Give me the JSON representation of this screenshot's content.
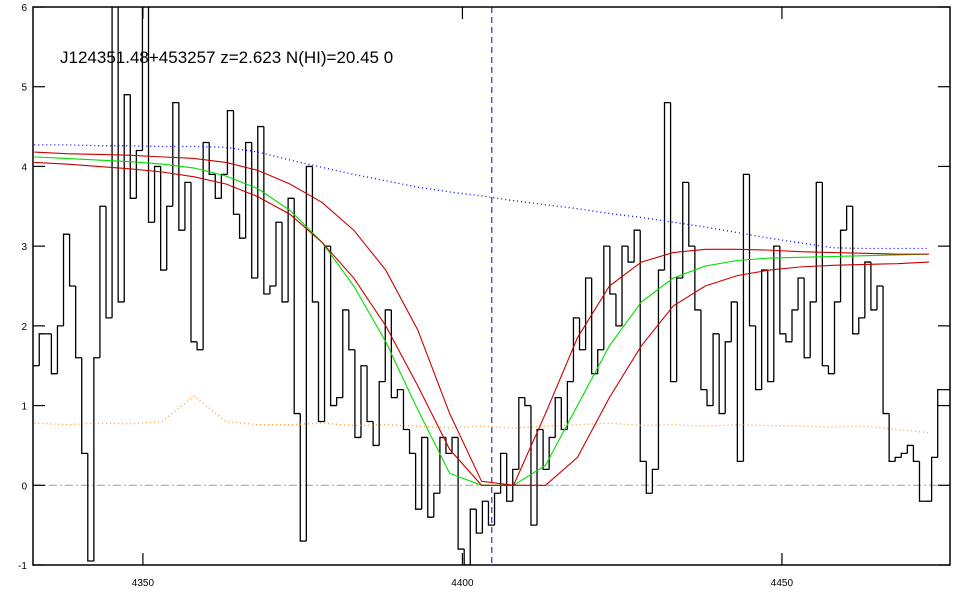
{
  "chart_data": {
    "type": "line",
    "title": "J124351.48+453257 z=2.623 N(HI)=20.45 0",
    "xlim": [
      4332.8,
      4476.3
    ],
    "ylim": [
      -1,
      6
    ],
    "xticks": [
      4350,
      4400,
      4450
    ],
    "yticks": [
      -1,
      0,
      1,
      2,
      3,
      4,
      5,
      6
    ],
    "hline": 0,
    "vline": 4404.6,
    "series": [
      {
        "color": "#000000",
        "style": "step",
        "x": [
          4333.3,
          4334.25,
          4335.2,
          4336.15,
          4337.1,
          4338.05,
          4339.0,
          4339.95,
          4340.9,
          4341.85,
          4342.8,
          4343.75,
          4344.7,
          4345.65,
          4346.6,
          4347.55,
          4348.5,
          4349.45,
          4350.4,
          4351.35,
          4352.3,
          4353.25,
          4354.2,
          4355.15,
          4356.1,
          4357.05,
          4358.0,
          4358.95,
          4359.9,
          4360.85,
          4361.8,
          4362.75,
          4363.7,
          4364.65,
          4365.6,
          4366.55,
          4367.5,
          4368.45,
          4369.4,
          4370.35,
          4371.3,
          4372.25,
          4373.2,
          4374.15,
          4375.1,
          4376.05,
          4377.0,
          4377.95,
          4378.9,
          4379.85,
          4380.8,
          4381.75,
          4382.7,
          4383.65,
          4384.6,
          4385.55,
          4386.5,
          4387.45,
          4388.4,
          4389.35,
          4390.3,
          4391.25,
          4392.2,
          4393.15,
          4394.1,
          4395.05,
          4396.0,
          4396.95,
          4397.9,
          4398.85,
          4399.8,
          4400.75,
          4401.7,
          4402.65,
          4403.6,
          4404.55,
          4405.5,
          4406.45,
          4407.4,
          4408.35,
          4409.3,
          4410.25,
          4411.2,
          4412.15,
          4413.1,
          4414.05,
          4415.0,
          4415.95,
          4416.9,
          4417.85,
          4418.8,
          4419.75,
          4420.7,
          4421.65,
          4422.6,
          4423.55,
          4424.5,
          4425.45,
          4426.4,
          4427.35,
          4428.3,
          4429.25,
          4430.2,
          4431.15,
          4432.1,
          4433.05,
          4434.0,
          4434.95,
          4435.9,
          4436.85,
          4437.8,
          4438.75,
          4439.7,
          4440.65,
          4441.6,
          4442.55,
          4443.5,
          4444.45,
          4445.4,
          4446.35,
          4447.3,
          4448.25,
          4449.2,
          4450.15,
          4451.1,
          4452.05,
          4453.0,
          4453.95,
          4454.9,
          4455.85,
          4456.8,
          4457.75,
          4458.7,
          4459.65,
          4460.6,
          4461.55,
          4462.5,
          4463.45,
          4464.4,
          4465.35,
          4466.3,
          4467.25,
          4468.2,
          4469.15,
          4470.1,
          4471.05,
          4472.0,
          4472.95,
          4473.9,
          4474.85,
          4475.8
        ],
        "values": [
          1.5,
          1.9,
          1.9,
          1.4,
          2.0,
          3.15,
          2.5,
          1.6,
          0.4,
          -0.95,
          1.6,
          3.5,
          2.1,
          6.2,
          2.3,
          4.9,
          3.6,
          4.2,
          6.2,
          3.3,
          4.0,
          2.7,
          3.5,
          4.8,
          3.2,
          3.8,
          1.8,
          1.7,
          4.3,
          3.9,
          3.6,
          3.9,
          4.7,
          3.4,
          3.1,
          4.3,
          2.6,
          4.5,
          2.4,
          2.5,
          3.3,
          2.3,
          3.6,
          0.9,
          -0.7,
          4.0,
          2.3,
          0.8,
          3.0,
          1.0,
          1.1,
          2.2,
          1.7,
          0.6,
          1.5,
          0.8,
          0.5,
          1.3,
          2.2,
          1.1,
          1.2,
          0.7,
          0.4,
          -0.3,
          0.6,
          -0.4,
          -0.1,
          0.6,
          0.4,
          0.6,
          -0.8,
          -1.0,
          -0.3,
          -0.6,
          -0.2,
          -0.5,
          -0.1,
          0.4,
          -0.2,
          0.2,
          1.1,
          1.0,
          -0.5,
          0.7,
          0.2,
          0.6,
          1.1,
          0.7,
          1.3,
          2.1,
          1.7,
          2.6,
          1.4,
          1.7,
          3.0,
          2.4,
          2.0,
          3.0,
          2.8,
          3.2,
          0.3,
          -0.1,
          0.2,
          2.7,
          4.8,
          1.3,
          2.6,
          3.8,
          3.0,
          2.2,
          1.2,
          1.0,
          1.9,
          0.9,
          1.8,
          2.3,
          0.3,
          3.9,
          2.0,
          1.2,
          2.7,
          1.3,
          3.0,
          1.9,
          1.8,
          2.2,
          2.6,
          1.6,
          2.3,
          3.8,
          1.5,
          1.4,
          2.3,
          3.2,
          3.5,
          1.9,
          2.1,
          2.8,
          2.2,
          2.5,
          0.9,
          0.3,
          0.35,
          0.4,
          0.5,
          0.3,
          -0.2,
          -0.2,
          0.35,
          1.2,
          1.2
        ]
      },
      {
        "color": "#ff9933",
        "style": "dotted",
        "x": [
          4333,
          4338,
          4343,
          4348,
          4353,
          4358,
          4363,
          4368,
          4373,
          4378,
          4383,
          4388,
          4393,
          4398,
          4403,
          4408,
          4413,
          4418,
          4423,
          4428,
          4433,
          4438,
          4443,
          4448,
          4453,
          4458,
          4463,
          4468,
          4473
        ],
        "values": [
          0.78,
          0.76,
          0.78,
          0.77,
          0.8,
          1.12,
          0.8,
          0.76,
          0.76,
          0.78,
          0.75,
          0.76,
          0.74,
          0.72,
          0.74,
          0.72,
          0.74,
          0.76,
          0.78,
          0.75,
          0.76,
          0.74,
          0.76,
          0.75,
          0.74,
          0.73,
          0.74,
          0.7,
          0.66
        ]
      },
      {
        "color": "#0000ff",
        "style": "dotted",
        "x": [
          4333,
          4338,
          4343,
          4348,
          4353,
          4358,
          4363,
          4368,
          4373,
          4378,
          4383,
          4388,
          4393,
          4398,
          4403,
          4408,
          4413,
          4418,
          4423,
          4428,
          4433,
          4438,
          4443,
          4448,
          4453,
          4458,
          4463,
          4468,
          4473
        ],
        "values": [
          4.27,
          4.27,
          4.26,
          4.26,
          4.25,
          4.25,
          4.24,
          4.18,
          4.08,
          3.99,
          3.9,
          3.82,
          3.74,
          3.68,
          3.63,
          3.57,
          3.52,
          3.47,
          3.41,
          3.36,
          3.3,
          3.24,
          3.17,
          3.1,
          3.04,
          2.98,
          2.97,
          2.97,
          2.97
        ]
      },
      {
        "color": "#00dd00",
        "style": "solid",
        "x": [
          4333,
          4338,
          4343,
          4348,
          4353,
          4358,
          4363,
          4368,
          4373,
          4378,
          4383,
          4388,
          4393,
          4398,
          4403,
          4408,
          4413,
          4418,
          4423,
          4428,
          4433,
          4438,
          4443,
          4448,
          4453,
          4458,
          4463,
          4468,
          4473
        ],
        "values": [
          4.12,
          4.1,
          4.08,
          4.06,
          4.03,
          3.98,
          3.88,
          3.72,
          3.45,
          3.05,
          2.5,
          1.8,
          0.95,
          0.15,
          0.0,
          0.0,
          0.25,
          1.0,
          1.75,
          2.3,
          2.6,
          2.75,
          2.82,
          2.85,
          2.86,
          2.87,
          2.88,
          2.89,
          2.9
        ]
      },
      {
        "color": "#cc0000",
        "style": "solid",
        "x": [
          4333,
          4338,
          4343,
          4348,
          4353,
          4358,
          4363,
          4368,
          4373,
          4378,
          4383,
          4388,
          4393,
          4398,
          4403,
          4408,
          4413,
          4418,
          4423,
          4428,
          4433,
          4438,
          4443,
          4448,
          4453,
          4458,
          4463,
          4468,
          4473
        ],
        "values": [
          4.18,
          4.16,
          4.15,
          4.14,
          4.12,
          4.1,
          4.05,
          3.95,
          3.78,
          3.55,
          3.2,
          2.7,
          1.95,
          0.9,
          0.05,
          0.0,
          0.9,
          1.85,
          2.5,
          2.8,
          2.92,
          2.96,
          2.96,
          2.95,
          2.93,
          2.92,
          2.91,
          2.9,
          2.9
        ]
      },
      {
        "color": "#cc0000",
        "style": "solid",
        "x": [
          4333,
          4338,
          4343,
          4348,
          4353,
          4358,
          4363,
          4368,
          4373,
          4378,
          4383,
          4388,
          4393,
          4398,
          4403,
          4408,
          4413,
          4418,
          4423,
          4428,
          4433,
          4438,
          4443,
          4448,
          4453,
          4458,
          4463,
          4468,
          4473
        ],
        "values": [
          4.05,
          4.03,
          4.0,
          3.97,
          3.93,
          3.87,
          3.78,
          3.62,
          3.4,
          3.05,
          2.6,
          2.0,
          1.25,
          0.45,
          0.0,
          0.0,
          0.0,
          0.35,
          1.1,
          1.75,
          2.25,
          2.5,
          2.63,
          2.7,
          2.74,
          2.76,
          2.77,
          2.78,
          2.8
        ]
      }
    ]
  }
}
